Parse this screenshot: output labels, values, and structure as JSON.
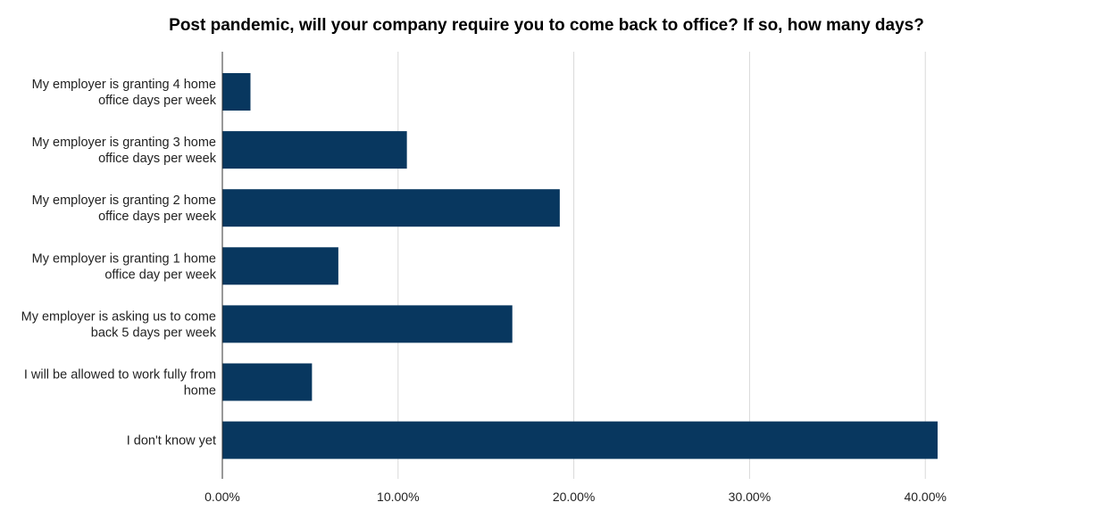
{
  "chart_data": {
    "type": "bar",
    "orientation": "horizontal",
    "title": "Post pandemic, will your company require you to come back to office? If so, how many days?",
    "xlabel": "",
    "ylabel": "",
    "categories": [
      [
        "My employer is granting 4 home",
        "office days per week"
      ],
      [
        "My employer is granting 3 home",
        "office days per week"
      ],
      [
        "My employer is granting 2 home",
        "office days per week"
      ],
      [
        "My employer is granting 1 home",
        "office day per week"
      ],
      [
        "My employer is asking us to come",
        "back 5 days per week"
      ],
      [
        "I will be allowed to work fully from",
        "home"
      ],
      [
        "I don't know yet"
      ]
    ],
    "values": [
      1.6,
      10.5,
      19.2,
      6.6,
      16.5,
      5.1,
      40.7
    ],
    "xlim": [
      0,
      40
    ],
    "xticks": [
      "0.00%",
      "10.00%",
      "20.00%",
      "30.00%",
      "40.00%"
    ],
    "xtick_values": [
      0,
      10,
      20,
      30,
      40
    ],
    "bar_color": "#08375f",
    "grid": true,
    "legend": "none"
  }
}
